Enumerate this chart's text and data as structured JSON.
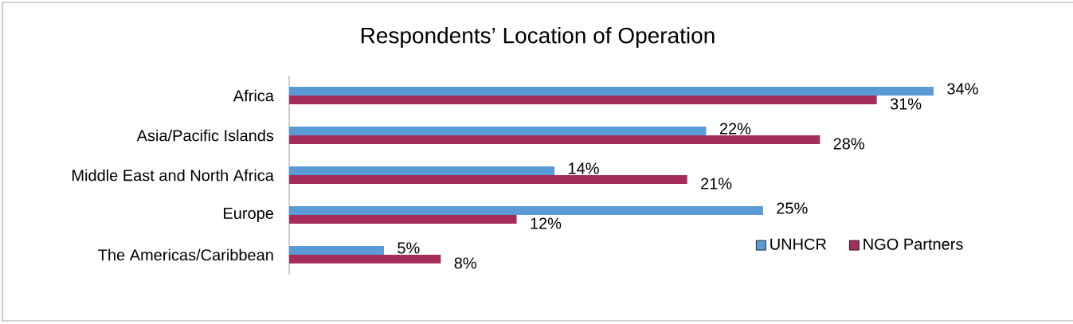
{
  "chart_data": {
    "type": "bar",
    "orientation": "horizontal",
    "title": "Respondents’ Location of Operation",
    "categories": [
      "Africa",
      "Asia/Pacific Islands",
      "Middle East and North Africa",
      "Europe",
      "The Americas/Caribbean"
    ],
    "series": [
      {
        "name": "UNHCR",
        "color": "#5b9bd5",
        "values": [
          34,
          22,
          14,
          25,
          5
        ],
        "value_labels": [
          "34%",
          "22%",
          "14%",
          "25%",
          "5%"
        ]
      },
      {
        "name": "NGO Partners",
        "color": "#a52d5a",
        "values": [
          31,
          28,
          21,
          12,
          8
        ],
        "value_labels": [
          "31%",
          "28%",
          "21%",
          "12%",
          "8%"
        ]
      }
    ],
    "legend": "bottom right"
  }
}
